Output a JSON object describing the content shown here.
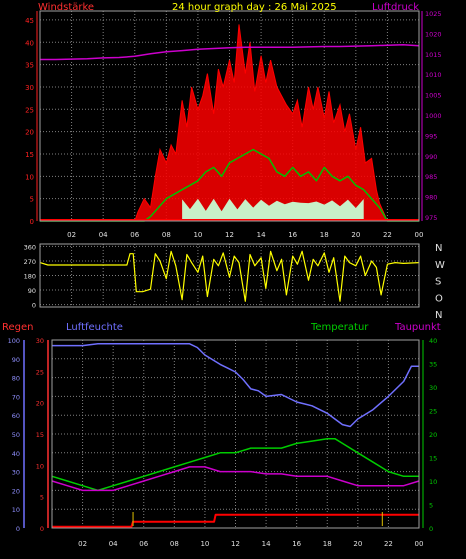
{
  "header": {
    "left_label": "Windstärke",
    "title": "24 hour graph day : 26 Mai 2025",
    "right_label": "Luftdruck"
  },
  "x_ticks": [
    "02",
    "04",
    "06",
    "08",
    "10",
    "12",
    "14",
    "16",
    "18",
    "20",
    "22",
    "00"
  ],
  "colors": {
    "wind": "#ff0000",
    "wind_avg": "#00c000",
    "gust_fill": "#c8f0c8",
    "pressure": "#cc00cc",
    "direction": "#ffff00",
    "humidity": "#7070ff",
    "temperature": "#00cc00",
    "dewpoint": "#cc00cc",
    "rain": "#ff0000",
    "grid": "#808080"
  },
  "chart_data": [
    {
      "type": "line",
      "xlabel": "",
      "left_axis": {
        "label": "Windstärke",
        "ticks": [
          "0",
          "5",
          "10",
          "15",
          "20",
          "25",
          "30",
          "35",
          "40",
          "45"
        ],
        "ylim": [
          0,
          47
        ]
      },
      "right_axis": {
        "label": "Luftdruck",
        "ticks": [
          "975",
          "980",
          "985",
          "990",
          "995",
          "1000",
          "1005",
          "1010",
          "1015",
          "1020",
          "1025"
        ],
        "ylim": [
          974,
          1025.5
        ]
      },
      "series": [
        {
          "name": "Windstärke",
          "x": [
            0,
            6,
            6.2,
            6.6,
            7,
            7.3,
            7.6,
            8,
            8.3,
            8.6,
            9,
            9.3,
            9.6,
            10,
            10.3,
            10.6,
            11,
            11.3,
            11.6,
            12,
            12.3,
            12.6,
            13,
            13.3,
            13.6,
            14,
            14.3,
            14.6,
            15,
            15.3,
            15.6,
            16,
            16.3,
            16.6,
            17,
            17.3,
            17.6,
            18,
            18.3,
            18.6,
            19,
            19.3,
            19.6,
            20,
            20.3,
            20.6,
            21,
            21.3,
            21.5,
            22,
            24
          ],
          "y": [
            0,
            0,
            2,
            5,
            3,
            10,
            16,
            13,
            17,
            15,
            27,
            21,
            30,
            25,
            28,
            33,
            24,
            34,
            30,
            36,
            31,
            44,
            33,
            40,
            29,
            37,
            31,
            36,
            30,
            28,
            26,
            24,
            27,
            21,
            30,
            25,
            30,
            23,
            29,
            22,
            26,
            20,
            24,
            16,
            21,
            13,
            14,
            7,
            4,
            0,
            0
          ]
        },
        {
          "name": "Windstärke Mittel",
          "x": [
            0,
            6.6,
            7,
            7.5,
            8,
            8.5,
            9,
            9.5,
            10,
            10.5,
            11,
            11.5,
            12,
            12.5,
            13,
            13.5,
            14,
            14.5,
            15,
            15.5,
            16,
            16.5,
            17,
            17.5,
            18,
            18.5,
            19,
            19.5,
            20,
            20.5,
            21,
            21.5,
            22,
            24
          ],
          "y": [
            0,
            0,
            1,
            3,
            5,
            6,
            7,
            8,
            9,
            11,
            12,
            10,
            13,
            14,
            15,
            16,
            15,
            14,
            11,
            10,
            12,
            10,
            11,
            9,
            12,
            10,
            9,
            10,
            8,
            7,
            5,
            3,
            0,
            0
          ]
        },
        {
          "name": "Luftdruck",
          "x": [
            0,
            1,
            2,
            3,
            4,
            5,
            6,
            7,
            8,
            9,
            10,
            11,
            12,
            13,
            14,
            15,
            16,
            17,
            18,
            19,
            20,
            21,
            22,
            23,
            24
          ],
          "y": [
            1013.6,
            1013.6,
            1013.7,
            1013.8,
            1014.0,
            1014.1,
            1014.4,
            1015.0,
            1015.5,
            1015.8,
            1016.1,
            1016.3,
            1016.5,
            1016.6,
            1016.6,
            1016.6,
            1016.6,
            1016.7,
            1016.8,
            1016.8,
            1016.9,
            1017.0,
            1017.1,
            1017.2,
            1017.0
          ]
        }
      ]
    },
    {
      "type": "line",
      "left_axis": {
        "ticks": [
          "360",
          "270",
          "180",
          "90",
          "0"
        ],
        "ylim": [
          -15,
          375
        ]
      },
      "right_axis": {
        "ticks": [
          "N",
          "W",
          "S",
          "O",
          "N"
        ]
      },
      "series": [
        {
          "name": "Windrichtung",
          "x": [
            0,
            0.5,
            1,
            2,
            3,
            4,
            5.5,
            5.7,
            5.9,
            6.1,
            6.3,
            6.5,
            7,
            7.3,
            7.6,
            8,
            8.3,
            8.6,
            9,
            9.3,
            9.6,
            10,
            10.3,
            10.6,
            11,
            11.3,
            11.6,
            12,
            12.3,
            12.6,
            13,
            13.3,
            13.6,
            14,
            14.3,
            14.6,
            15,
            15.3,
            15.6,
            16,
            16.3,
            16.6,
            17,
            17.3,
            17.6,
            18,
            18.3,
            18.6,
            19,
            19.3,
            19.6,
            20,
            20.3,
            20.6,
            21,
            21.3,
            21.6,
            22,
            22.5,
            23,
            24
          ],
          "y": [
            260,
            245,
            245,
            245,
            245,
            245,
            245,
            315,
            315,
            80,
            80,
            80,
            95,
            315,
            270,
            160,
            330,
            240,
            30,
            310,
            260,
            200,
            300,
            50,
            280,
            240,
            320,
            170,
            300,
            260,
            20,
            310,
            240,
            290,
            100,
            330,
            210,
            280,
            60,
            300,
            250,
            330,
            150,
            280,
            240,
            320,
            200,
            290,
            20,
            300,
            260,
            240,
            300,
            180,
            270,
            230,
            60,
            250,
            260,
            255,
            260
          ]
        }
      ]
    },
    {
      "type": "line",
      "legend": [
        "Regen",
        "Luftfeuchte",
        "Temperatur",
        "Taupunkt"
      ],
      "axes": {
        "humidity_ticks": [
          "0",
          "10",
          "20",
          "30",
          "40",
          "50",
          "60",
          "70",
          "80",
          "90",
          "100"
        ],
        "humidity_ylim": [
          0,
          100
        ],
        "rain_ticks": [
          "0",
          "5",
          "10",
          "15",
          "20",
          "25",
          "30"
        ],
        "rain_ylim": [
          0,
          30
        ],
        "temperature_ticks": [
          "0",
          "5",
          "10",
          "15",
          "20",
          "25",
          "30",
          "35",
          "40"
        ],
        "temperature_ylim": [
          0,
          40
        ]
      },
      "series": [
        {
          "name": "Luftfeuchte",
          "x": [
            0,
            1,
            2,
            3,
            4,
            5,
            6,
            7,
            8,
            9,
            9.5,
            10,
            11,
            11.5,
            12,
            12.5,
            13,
            13.5,
            14,
            15,
            16,
            16.5,
            17,
            17.5,
            18,
            18.5,
            19,
            19.5,
            20,
            21,
            22,
            23,
            23.5,
            24
          ],
          "y": [
            97,
            97,
            97,
            98,
            98,
            98,
            98,
            98,
            98,
            98,
            96,
            92,
            87,
            85,
            83,
            79,
            74,
            73,
            70,
            71,
            67,
            66,
            65,
            63,
            61,
            58,
            55,
            54,
            58,
            63,
            70,
            78,
            86,
            86
          ]
        },
        {
          "name": "Temperatur",
          "x": [
            0,
            1,
            2,
            3,
            4,
            5,
            6,
            7,
            8,
            9,
            10,
            11,
            12,
            13,
            14,
            15,
            16,
            17,
            18,
            18.5,
            19,
            20,
            21,
            22,
            23,
            24
          ],
          "y": [
            11,
            10,
            9,
            8,
            9,
            10,
            11,
            12,
            13,
            14,
            15,
            16,
            16,
            17,
            17,
            17,
            18,
            18.5,
            19,
            19,
            18,
            16,
            14,
            12,
            11,
            11
          ]
        },
        {
          "name": "Taupunkt",
          "x": [
            0,
            1,
            2,
            3,
            4,
            5,
            6,
            7,
            8,
            9,
            10,
            11,
            12,
            13,
            14,
            15,
            16,
            17,
            18,
            19,
            20,
            21,
            22,
            23,
            24
          ],
          "y": [
            10,
            9,
            8,
            8,
            8,
            9,
            10,
            11,
            12,
            13,
            13,
            12,
            12,
            12,
            11.5,
            11.5,
            11,
            11,
            11,
            10,
            9,
            9,
            9,
            9,
            10
          ]
        },
        {
          "name": "Regen",
          "x": [
            0,
            5.2,
            5.3,
            10.6,
            10.7,
            24
          ],
          "y": [
            0.2,
            0.2,
            1.0,
            1.0,
            2.1,
            2.1
          ]
        }
      ]
    }
  ],
  "panel3_labels": {
    "rain": "Regen",
    "humidity": "Luftfeuchte",
    "temperature": "Temperatur",
    "dewpoint": "Taupunkt"
  }
}
